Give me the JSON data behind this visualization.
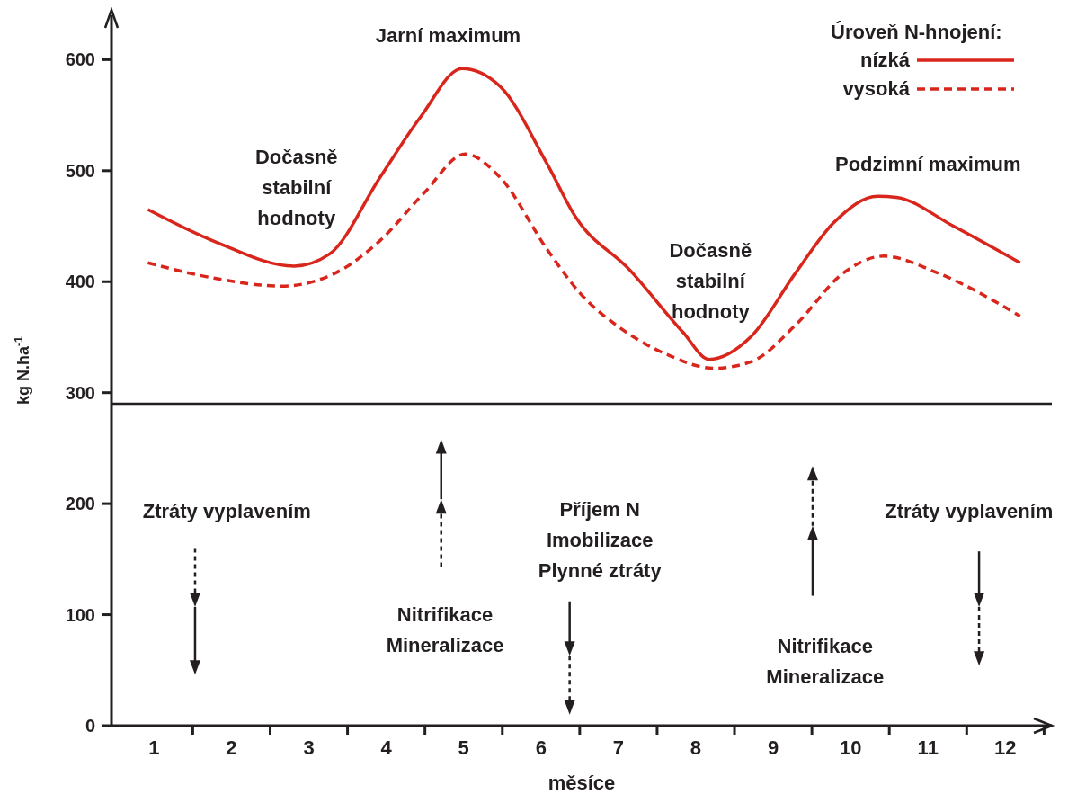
{
  "chart_data": {
    "type": "line",
    "xlabel": "měsíce",
    "ylabel": "kg N.ha$^{-1}$",
    "legend_title": "Úroveň N-hnojení:",
    "xlim": [
      0.45,
      12.6
    ],
    "ylim": [
      0,
      640
    ],
    "xticks": [
      1,
      2,
      3,
      4,
      5,
      6,
      7,
      8,
      9,
      10,
      11,
      12,
      {
        "value": 1.5,
        "label": null
      },
      {
        "value": 2.5,
        "label": null
      },
      {
        "value": 3.5,
        "label": null
      },
      {
        "value": 4.5,
        "label": null
      },
      {
        "value": 5.5,
        "label": null
      },
      {
        "value": 6.5,
        "label": null
      },
      {
        "value": 7.5,
        "label": null
      },
      {
        "value": 8.5,
        "label": null
      },
      {
        "value": 9.5,
        "label": null
      },
      {
        "value": 10.5,
        "label": null
      },
      {
        "value": 11.5,
        "label": null
      },
      {
        "value": 12.5,
        "label": null
      }
    ],
    "yticks": [
      0,
      100,
      200,
      300,
      400,
      500,
      600
    ],
    "legend": "top right",
    "marker": "none",
    "series": [
      {
        "name": "nízká",
        "color": "#d9261c",
        "line_style": "solid",
        "x": [
          0.92,
          1.79,
          2.81,
          3.27,
          3.92,
          4.44,
          4.98,
          5.47,
          6.08,
          6.44,
          7.14,
          7.84,
          8.17,
          8.72,
          9.29,
          9.78,
          10.35,
          10.59,
          11.33,
          12.19
        ],
        "values": [
          465,
          436,
          414,
          425,
          494,
          548,
          592,
          576,
          506,
          459,
          411,
          354,
          330,
          351,
          408,
          453,
          477,
          476,
          450,
          417
        ]
      },
      {
        "name": "vysoká",
        "color": "#d9261c",
        "line_style": "dashed",
        "x": [
          0.92,
          1.79,
          2.65,
          3.35,
          3.92,
          4.49,
          5.02,
          5.47,
          6.08,
          6.5,
          7.05,
          7.64,
          8.23,
          8.72,
          9.29,
          9.91,
          10.43,
          11.12,
          12.19
        ],
        "values": [
          417,
          403,
          396,
          408,
          437,
          480,
          515,
          494,
          429,
          390,
          357,
          334,
          322,
          328,
          361,
          408,
          423,
          408,
          369
        ]
      }
    ],
    "ref_lines": [
      {
        "axis": "y",
        "value": 290,
        "color": "#231f20"
      }
    ],
    "annotations": [
      "Jarní maximum",
      "Dočasně\nstabilní\nhodnoty",
      "Dočasně\nstabilní\nhodnoty",
      "Podzimní maximum",
      "Ztráty vyplavením",
      "Příjem N\nImobilizace\nPlynné ztráty",
      "Nitrifikace\nMineralizace",
      "Nitrifikace\nMineralizace",
      "Ztráty vyplavením"
    ]
  }
}
